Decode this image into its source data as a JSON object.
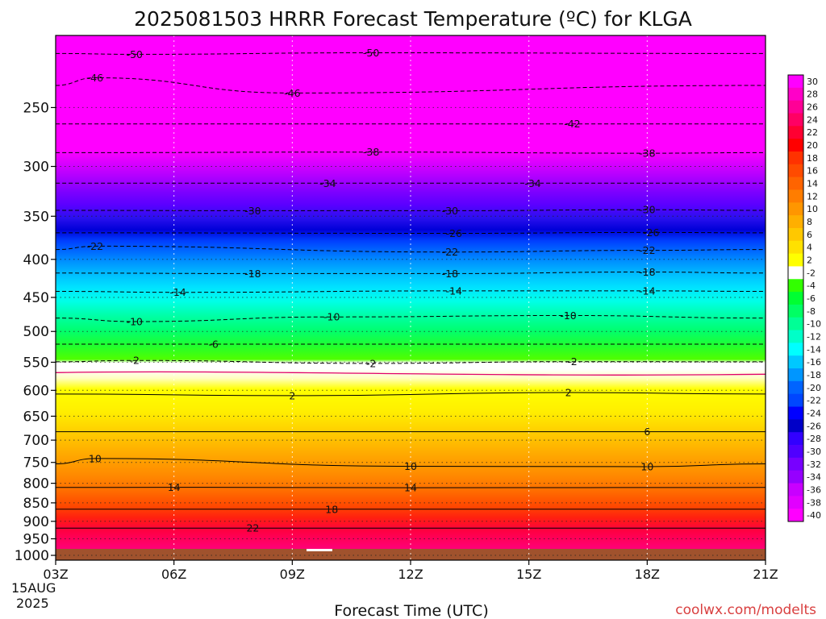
{
  "chart_data": {
    "type": "heatmap",
    "title": "2025081503 HRRR Forecast Temperature (ºC) for KLGA",
    "xlabel": "Forecast Time (UTC)",
    "ylabel": "",
    "credit": "coolwx.com/modelts",
    "x_ticks": [
      {
        "label": "03Z",
        "hour": 3
      },
      {
        "label": "06Z",
        "hour": 6
      },
      {
        "label": "09Z",
        "hour": 9
      },
      {
        "label": "12Z",
        "hour": 12
      },
      {
        "label": "15Z",
        "hour": 15
      },
      {
        "label": "18Z",
        "hour": 18
      },
      {
        "label": "21Z",
        "hour": 21
      }
    ],
    "start_date": [
      "15AUG",
      "2025"
    ],
    "xlim": [
      3,
      21
    ],
    "y_axis": {
      "scale": "log",
      "inverted": true,
      "range": [
        200,
        1015
      ]
    },
    "y_ticks": [
      250,
      300,
      350,
      400,
      450,
      500,
      550,
      600,
      650,
      700,
      750,
      800,
      850,
      900,
      950,
      1000
    ],
    "colorbar": {
      "labels": [
        30,
        28,
        26,
        24,
        22,
        20,
        18,
        16,
        14,
        12,
        10,
        8,
        6,
        4,
        2,
        -2,
        -4,
        -6,
        -8,
        -10,
        -12,
        -14,
        -16,
        -18,
        -20,
        -22,
        -24,
        -26,
        -28,
        -30,
        -32,
        -34,
        -36,
        -38,
        -40
      ],
      "colors": [
        "#ff00ff",
        "#ff00c8",
        "#ff0096",
        "#ff0064",
        "#ff0032",
        "#ff0000",
        "#ff3200",
        "#ff4b00",
        "#ff6400",
        "#ff7d00",
        "#ff9600",
        "#ffaf00",
        "#ffc800",
        "#ffe100",
        "#ffff00",
        "#ffffff",
        "#32ff00",
        "#00ff32",
        "#00ff64",
        "#00ff96",
        "#00ffc8",
        "#00ffff",
        "#00c8ff",
        "#0096ff",
        "#0064ff",
        "#0046ff",
        "#0000ff",
        "#0000c8",
        "#3200ff",
        "#5000ff",
        "#7800ff",
        "#9600ff",
        "#c800ff",
        "#e100ff",
        "#ff00ff"
      ]
    },
    "isotherm_labels": [
      {
        "text": "-50",
        "hour": 5.0,
        "pressure": 212
      },
      {
        "text": "-50",
        "hour": 11.0,
        "pressure": 211
      },
      {
        "text": "-46",
        "hour": 4.0,
        "pressure": 228
      },
      {
        "text": "-46",
        "hour": 9.0,
        "pressure": 239
      },
      {
        "text": "-42",
        "hour": 16.1,
        "pressure": 263
      },
      {
        "text": "-38",
        "hour": 11.0,
        "pressure": 287
      },
      {
        "text": "-38",
        "hour": 18.0,
        "pressure": 288
      },
      {
        "text": "-34",
        "hour": 9.9,
        "pressure": 316
      },
      {
        "text": "-34",
        "hour": 15.1,
        "pressure": 316
      },
      {
        "text": "-30",
        "hour": 8.0,
        "pressure": 344
      },
      {
        "text": "-30",
        "hour": 13.0,
        "pressure": 344
      },
      {
        "text": "-30",
        "hour": 18.0,
        "pressure": 343
      },
      {
        "text": "-26",
        "hour": 13.1,
        "pressure": 369
      },
      {
        "text": "-26",
        "hour": 18.1,
        "pressure": 368
      },
      {
        "text": "-22",
        "hour": 4.0,
        "pressure": 384
      },
      {
        "text": "-22",
        "hour": 13.0,
        "pressure": 391
      },
      {
        "text": "-22",
        "hour": 18.0,
        "pressure": 389
      },
      {
        "text": "-18",
        "hour": 8.0,
        "pressure": 418
      },
      {
        "text": "-18",
        "hour": 13.0,
        "pressure": 418
      },
      {
        "text": "-18",
        "hour": 18.0,
        "pressure": 416
      },
      {
        "text": "-14",
        "hour": 6.1,
        "pressure": 443
      },
      {
        "text": "-14",
        "hour": 13.1,
        "pressure": 441
      },
      {
        "text": "-14",
        "hour": 18.0,
        "pressure": 441
      },
      {
        "text": "-10",
        "hour": 5.0,
        "pressure": 485
      },
      {
        "text": "-10",
        "hour": 10.0,
        "pressure": 478
      },
      {
        "text": "-10",
        "hour": 16.0,
        "pressure": 476
      },
      {
        "text": "-6",
        "hour": 7.0,
        "pressure": 520
      },
      {
        "text": "-2",
        "hour": 5.0,
        "pressure": 547
      },
      {
        "text": "-2",
        "hour": 11.0,
        "pressure": 552
      },
      {
        "text": "-2",
        "hour": 16.1,
        "pressure": 549
      },
      {
        "text": "2",
        "hour": 9.0,
        "pressure": 610
      },
      {
        "text": "2",
        "hour": 16.0,
        "pressure": 604
      },
      {
        "text": "6",
        "hour": 18.0,
        "pressure": 682
      },
      {
        "text": "10",
        "hour": 4.0,
        "pressure": 741
      },
      {
        "text": "10",
        "hour": 12.0,
        "pressure": 759
      },
      {
        "text": "10",
        "hour": 18.0,
        "pressure": 760
      },
      {
        "text": "14",
        "hour": 6.0,
        "pressure": 810
      },
      {
        "text": "14",
        "hour": 12.0,
        "pressure": 811
      },
      {
        "text": "18",
        "hour": 10.0,
        "pressure": 867
      },
      {
        "text": "22",
        "hour": 8.0,
        "pressure": 919
      }
    ]
  }
}
